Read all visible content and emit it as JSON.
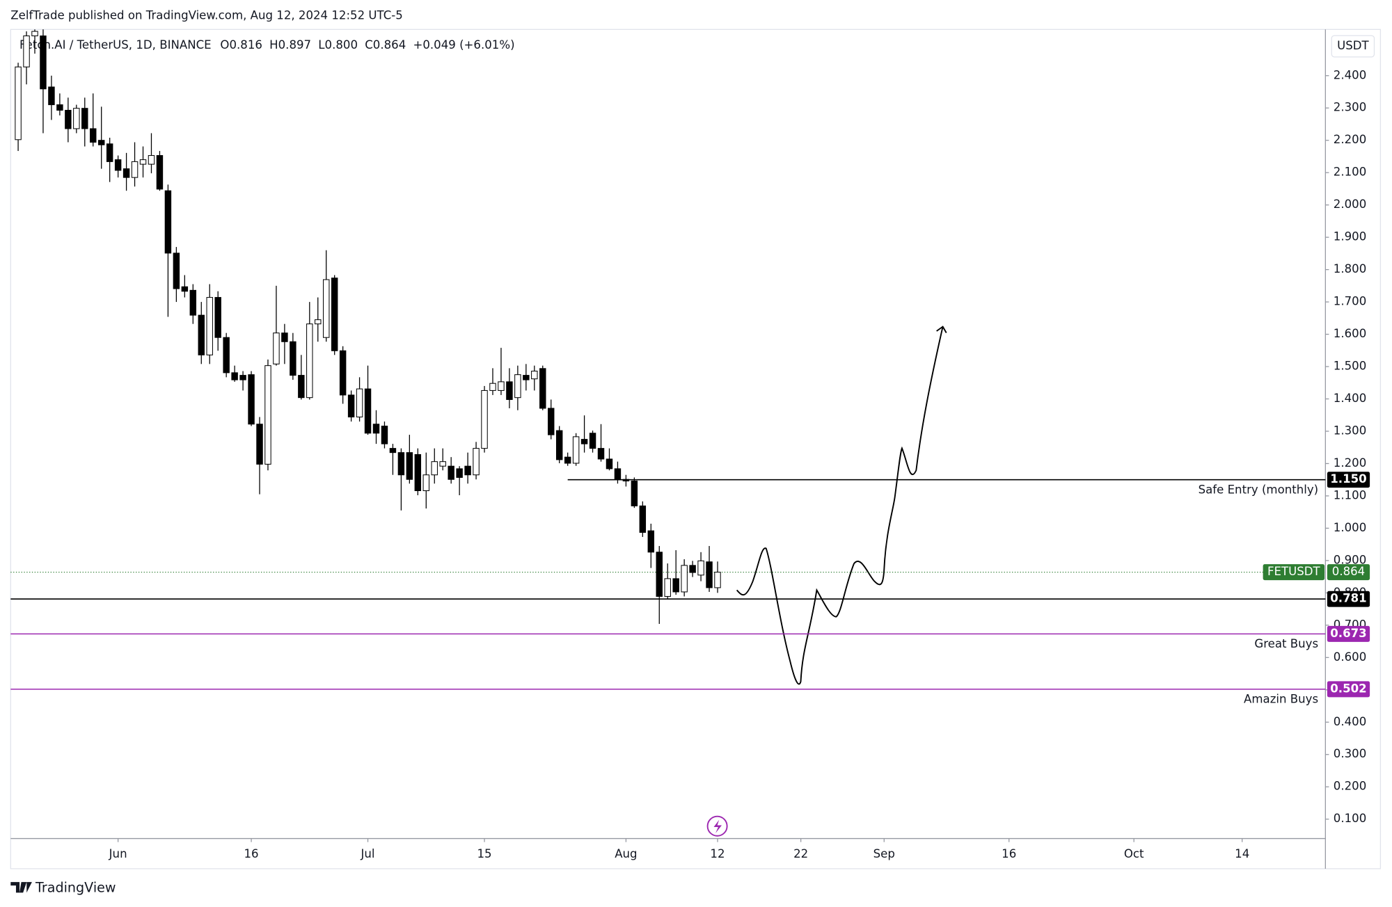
{
  "header": "ZelfTrade published on TradingView.com, Aug 12, 2024 12:52 UTC-5",
  "footer": "TradingView",
  "chart_data": {
    "type": "candlestick",
    "title": "Fetch.AI / TetherUS, 1D, BINANCE",
    "ohlc_labels": [
      "O0.816",
      "H0.897",
      "L0.800",
      "C0.864",
      "+0.049 (+6.01%)"
    ],
    "currency": "USDT",
    "up_color": "#ffffff",
    "down_color": "#000000",
    "x": [
      -12,
      -11,
      -10,
      -9,
      -8,
      -7,
      -6,
      -5,
      -4,
      -3,
      -2,
      -1,
      0,
      1,
      2,
      3,
      4,
      5,
      6,
      7,
      8,
      9,
      10,
      11,
      12,
      13,
      14,
      15,
      16,
      17,
      18,
      19,
      20,
      21,
      22,
      23,
      24,
      25,
      26,
      27,
      28,
      29,
      30,
      31,
      32,
      33,
      34,
      35,
      36,
      37,
      38,
      39,
      40,
      41,
      42,
      43,
      44,
      45,
      46,
      47,
      48,
      49,
      50,
      51,
      52,
      53,
      54,
      55,
      56,
      57,
      58,
      59,
      60,
      61,
      62,
      63,
      64,
      65,
      66,
      67,
      68,
      69,
      70,
      71,
      72
    ],
    "open": [
      2.202,
      2.427,
      2.523,
      2.523,
      2.365,
      2.31,
      2.293,
      2.236,
      2.299,
      2.236,
      2.2,
      2.189,
      2.14,
      2.112,
      2.085,
      2.126,
      2.126,
      2.153,
      2.044,
      1.851,
      1.747,
      1.736,
      1.659,
      1.536,
      1.714,
      1.59,
      1.481,
      1.473,
      1.475,
      1.322,
      1.198,
      1.508,
      1.604,
      1.577,
      1.473,
      1.404,
      1.632,
      1.59,
      1.774,
      1.549,
      1.412,
      1.344,
      1.431,
      1.322,
      1.316,
      1.247,
      1.234,
      1.234,
      1.228,
      1.116,
      1.165,
      1.192,
      1.192,
      1.184,
      1.192,
      1.165,
      1.247,
      1.426,
      1.426,
      1.453,
      1.404,
      1.473,
      1.462,
      1.494,
      1.371,
      1.302,
      1.22,
      1.201,
      1.275,
      1.294,
      1.247,
      1.214,
      1.184,
      1.151,
      1.146,
      1.069,
      0.992,
      0.926,
      0.789,
      0.844,
      0.803,
      0.885,
      0.855,
      0.896,
      0.816
    ],
    "high": [
      2.44,
      2.537,
      2.543,
      2.543,
      2.4,
      2.345,
      2.332,
      2.31,
      2.332,
      2.345,
      2.304,
      2.208,
      2.153,
      2.161,
      2.194,
      2.181,
      2.222,
      2.167,
      2.063,
      1.87,
      1.783,
      1.755,
      1.7,
      1.755,
      1.733,
      1.604,
      1.503,
      1.486,
      1.486,
      1.344,
      1.522,
      1.75,
      1.632,
      1.604,
      1.536,
      1.7,
      1.714,
      1.86,
      1.783,
      1.563,
      1.426,
      1.467,
      1.503,
      1.365,
      1.33,
      1.261,
      1.247,
      1.289,
      1.247,
      1.234,
      1.247,
      1.247,
      1.22,
      1.192,
      1.234,
      1.267,
      1.44,
      1.495,
      1.558,
      1.495,
      1.503,
      1.508,
      1.503,
      1.503,
      1.398,
      1.316,
      1.234,
      1.294,
      1.349,
      1.302,
      1.322,
      1.247,
      1.206,
      1.165,
      1.157,
      1.083,
      1.014,
      0.945,
      0.891,
      0.932,
      0.904,
      0.899,
      0.926,
      0.945,
      0.897
    ],
    "low": [
      2.167,
      2.373,
      2.468,
      2.222,
      2.263,
      2.277,
      2.194,
      2.222,
      2.181,
      2.181,
      2.112,
      2.071,
      2.085,
      2.044,
      2.057,
      2.085,
      2.098,
      2.044,
      1.654,
      1.7,
      1.714,
      1.632,
      1.508,
      1.508,
      1.549,
      1.467,
      1.453,
      1.426,
      1.316,
      1.105,
      1.179,
      1.503,
      1.508,
      1.459,
      1.398,
      1.398,
      1.577,
      1.577,
      1.536,
      1.385,
      1.33,
      1.33,
      1.289,
      1.261,
      1.247,
      1.165,
      1.055,
      1.138,
      1.102,
      1.061,
      1.138,
      1.179,
      1.138,
      1.102,
      1.138,
      1.151,
      1.234,
      1.412,
      1.412,
      1.371,
      1.365,
      1.426,
      1.426,
      1.365,
      1.275,
      1.201,
      1.193,
      1.193,
      1.234,
      1.234,
      1.206,
      1.179,
      1.138,
      1.129,
      1.063,
      0.973,
      0.877,
      0.704,
      0.781,
      0.794,
      0.789,
      0.849,
      0.836,
      0.803,
      0.8
    ],
    "close": [
      2.427,
      2.523,
      2.537,
      2.359,
      2.31,
      2.293,
      2.236,
      2.299,
      2.236,
      2.194,
      2.186,
      2.134,
      2.107,
      2.085,
      2.134,
      2.14,
      2.153,
      2.049,
      1.851,
      1.741,
      1.733,
      1.659,
      1.536,
      1.714,
      1.59,
      1.481,
      1.459,
      1.459,
      1.322,
      1.198,
      1.503,
      1.604,
      1.577,
      1.473,
      1.404,
      1.632,
      1.645,
      1.769,
      1.549,
      1.412,
      1.344,
      1.431,
      1.294,
      1.294,
      1.261,
      1.234,
      1.165,
      1.151,
      1.116,
      1.165,
      1.206,
      1.206,
      1.151,
      1.157,
      1.165,
      1.247,
      1.426,
      1.448,
      1.453,
      1.398,
      1.475,
      1.459,
      1.486,
      1.371,
      1.289,
      1.212,
      1.201,
      1.283,
      1.261,
      1.247,
      1.214,
      1.184,
      1.151,
      1.146,
      1.069,
      0.987,
      0.926,
      0.789,
      0.844,
      0.803,
      0.885,
      0.863,
      0.899,
      0.816,
      0.864
    ],
    "xlim": [
      -12.9,
      145.0
    ],
    "ylim": [
      0.04,
      2.543
    ],
    "xticks": [
      {
        "value": 0,
        "label": "Jun"
      },
      16,
      {
        "value": 30,
        "label": "Jul"
      },
      {
        "value": 44,
        "label": "15"
      },
      {
        "value": 61,
        "label": "Aug"
      },
      {
        "value": 72,
        "label": "12"
      },
      {
        "value": 82,
        "label": "22"
      },
      {
        "value": 92,
        "label": "Sep"
      },
      {
        "value": 107,
        "label": "16"
      },
      {
        "value": 122,
        "label": "Oct"
      },
      {
        "value": 135,
        "label": "14"
      }
    ],
    "yticks": [
      {
        "value": 0.1,
        "label": "0.100"
      },
      {
        "value": 0.2,
        "label": "0.200"
      },
      {
        "value": 0.3,
        "label": "0.300"
      },
      {
        "value": 0.4,
        "label": "0.400"
      },
      {
        "value": 0.5,
        "label": "0.500"
      },
      {
        "value": 0.6,
        "label": "0.600"
      },
      {
        "value": 0.7,
        "label": "0.700"
      },
      {
        "value": 0.8,
        "label": "0.800"
      },
      {
        "value": 0.9,
        "label": "0.900"
      },
      {
        "value": 1.0,
        "label": "1.000"
      },
      {
        "value": 1.1,
        "label": "1.100"
      },
      {
        "value": 1.2,
        "label": "1.200"
      },
      {
        "value": 1.3,
        "label": "1.300"
      },
      {
        "value": 1.4,
        "label": "1.400"
      },
      {
        "value": 1.5,
        "label": "1.500"
      },
      {
        "value": 1.6,
        "label": "1.600"
      },
      {
        "value": 1.7,
        "label": "1.700"
      },
      {
        "value": 1.8,
        "label": "1.800"
      },
      {
        "value": 1.9,
        "label": "1.900"
      },
      {
        "value": 2.0,
        "label": "2.000"
      },
      {
        "value": 2.1,
        "label": "2.100"
      },
      {
        "value": 2.2,
        "label": "2.200"
      },
      {
        "value": 2.3,
        "label": "2.300"
      },
      {
        "value": 2.4,
        "label": "2.400"
      }
    ],
    "levels": [
      {
        "value": 1.15,
        "value_label": "1.150",
        "text": "Safe Entry (monthly)",
        "color": "#000000",
        "from_x": 54
      },
      {
        "value": 0.781,
        "value_label": "0.781",
        "color": "#000000"
      },
      {
        "value": 0.673,
        "value_label": "0.673",
        "text": "Great Buys",
        "color": "#9c27b0"
      },
      {
        "value": 0.502,
        "value_label": "0.502",
        "text": "Amazin Buys",
        "color": "#9c27b0"
      }
    ],
    "last_price": {
      "value": 0.864,
      "value_label": "0.864",
      "label": "FETUSDT",
      "color": "#2e7d32"
    }
  }
}
